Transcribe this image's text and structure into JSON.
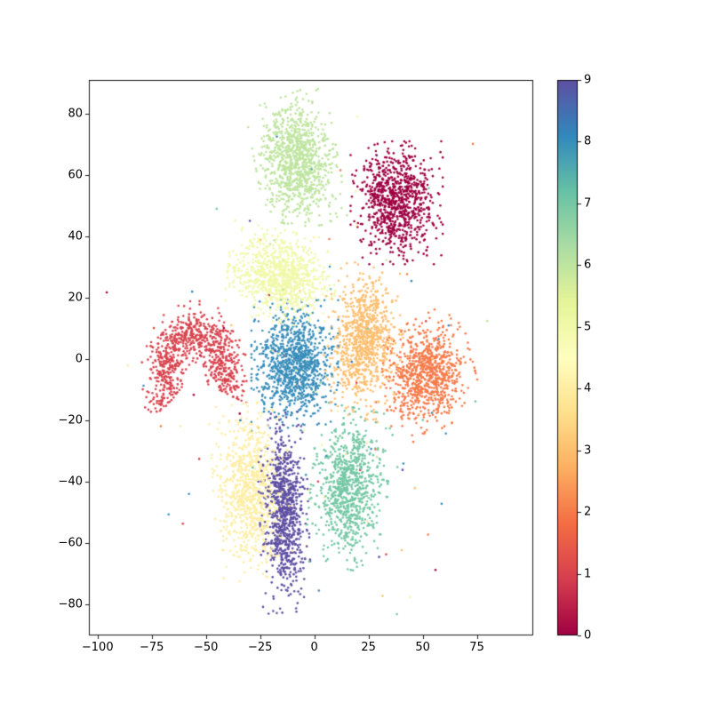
{
  "figure": {
    "kind": "matplotlib-scatter-figure",
    "background": "#ffffff",
    "title": ""
  },
  "chart_data": {
    "type": "scatter",
    "title": "",
    "xlabel": "",
    "ylabel": "",
    "grid": false,
    "xlim": [
      -104,
      101
    ],
    "ylim": [
      -90,
      91
    ],
    "xticks": {
      "values": [
        -100,
        -75,
        -50,
        -25,
        0,
        25,
        50,
        75
      ],
      "labels": [
        "−100",
        "−75",
        "−50",
        "−25",
        "0",
        "25",
        "50",
        "75"
      ]
    },
    "yticks": {
      "values": [
        -80,
        -60,
        -40,
        -20,
        0,
        20,
        40,
        60,
        80
      ],
      "labels": [
        "−80",
        "−60",
        "−40",
        "−20",
        "0",
        "20",
        "40",
        "60",
        "80"
      ]
    },
    "colorbar": {
      "colormap": "Spectral",
      "tick_values": [
        0,
        1,
        2,
        3,
        4,
        5,
        6,
        7,
        8,
        9
      ],
      "tick_labels": [
        "0",
        "1",
        "2",
        "3",
        "4",
        "5",
        "6",
        "7",
        "8",
        "9"
      ],
      "value_min": 0,
      "value_max": 9,
      "stops": [
        [
          0.0,
          "#9e0142"
        ],
        [
          0.1,
          "#d53e4f"
        ],
        [
          0.2,
          "#f46d43"
        ],
        [
          0.3,
          "#fdae61"
        ],
        [
          0.4,
          "#fee08b"
        ],
        [
          0.5,
          "#ffffbf"
        ],
        [
          0.6,
          "#e6f598"
        ],
        [
          0.7,
          "#abdda4"
        ],
        [
          0.8,
          "#66c2a5"
        ],
        [
          0.9,
          "#3288bd"
        ],
        [
          1.0,
          "#5e4fa2"
        ]
      ]
    },
    "marker": {
      "radius_px": 1.3
    },
    "seed": 1337,
    "stray_sigma": [
      40,
      36
    ],
    "stray_center": [
      3,
      -8
    ],
    "clusters": [
      {
        "label": "0",
        "value": 0,
        "color": "#9e0142",
        "shape": "blob",
        "center": [
          38,
          51
        ],
        "sigma": [
          8.5,
          8
        ],
        "rot": 0,
        "count": 900,
        "strays": 8
      },
      {
        "label": "1",
        "value": 1,
        "color": "#d8434e",
        "shape": "arc",
        "center": [
          -55,
          -6
        ],
        "radius": 15,
        "angle_deg": [
          -20,
          215
        ],
        "jitter": 4,
        "count": 850,
        "strays": 12
      },
      {
        "label": "2",
        "value": 2,
        "color": "#f67b4a",
        "shape": "blob",
        "center": [
          52,
          -5
        ],
        "sigma": [
          8.5,
          7.5
        ],
        "rot": 20,
        "count": 850,
        "strays": 10
      },
      {
        "label": "3",
        "value": 3,
        "color": "#fdbf6f",
        "shape": "blob",
        "center": [
          23,
          6
        ],
        "sigma": [
          7,
          10
        ],
        "rot": -10,
        "count": 900,
        "strays": 14
      },
      {
        "label": "4",
        "value": 4,
        "color": "#feeea2",
        "shape": "blob",
        "center": [
          -29,
          -43
        ],
        "sigma": [
          7,
          11.5
        ],
        "rot": 5,
        "count": 850,
        "strays": 10
      },
      {
        "label": "5",
        "value": 5,
        "color": "#f1f9a9",
        "shape": "blob",
        "center": [
          -15,
          27
        ],
        "sigma": [
          10,
          6
        ],
        "rot": -8,
        "count": 900,
        "strays": 10
      },
      {
        "label": "6",
        "value": 6,
        "color": "#bfe5a0",
        "shape": "blob",
        "center": [
          -8,
          64
        ],
        "sigma": [
          7.5,
          9
        ],
        "rot": 15,
        "count": 1000,
        "strays": 8
      },
      {
        "label": "7",
        "value": 7,
        "color": "#75c8a5",
        "shape": "blob",
        "center": [
          16,
          -42
        ],
        "sigma": [
          7,
          10.5
        ],
        "rot": -8,
        "count": 850,
        "strays": 14
      },
      {
        "label": "8",
        "value": 8,
        "color": "#388eba",
        "shape": "blob",
        "center": [
          -9,
          -2
        ],
        "sigma": [
          8,
          8.5
        ],
        "rot": 0,
        "count": 1000,
        "strays": 30
      },
      {
        "label": "9",
        "value": 9,
        "color": "#5e4fa2",
        "shape": "blob",
        "center": [
          -14,
          -50
        ],
        "sigma": [
          4.5,
          13
        ],
        "rot": 3,
        "count": 900,
        "strays": 6
      }
    ]
  }
}
